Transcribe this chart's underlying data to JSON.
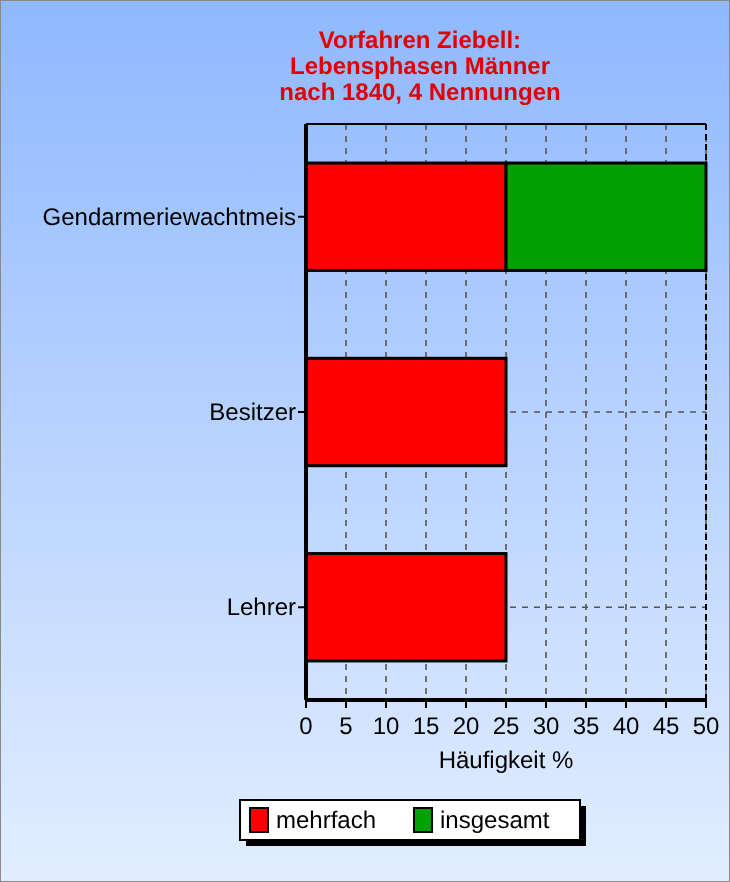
{
  "chart_data": {
    "type": "bar",
    "orientation": "horizontal",
    "stacked": true,
    "title": "Vorfahren Ziebell:\nLebensphasen Männer\nnach 1840, 4 Nennungen",
    "xlabel": "Häufigkeit %",
    "categories": [
      "Gendarmeriewachtmeis",
      "Besitzer",
      "Lehrer"
    ],
    "series": [
      {
        "name": "mehrfach",
        "color": "#ff0000",
        "values": [
          25,
          25,
          25
        ]
      },
      {
        "name": "insgesamt",
        "color": "#00a000",
        "values": [
          25,
          null,
          null
        ]
      }
    ],
    "xlim": [
      0,
      50
    ],
    "xticks": [
      0,
      5,
      10,
      15,
      20,
      25,
      30,
      35,
      40,
      45,
      50
    ],
    "grid": "x",
    "legend": "bottom"
  }
}
